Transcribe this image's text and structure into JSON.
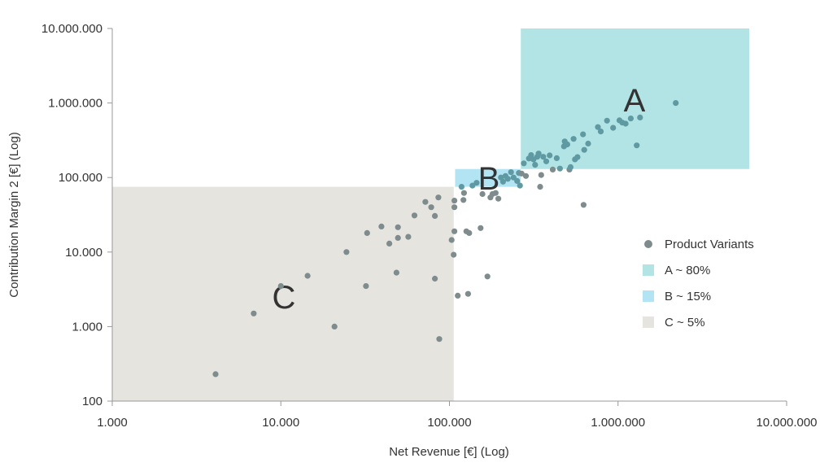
{
  "chart_data": {
    "type": "scatter",
    "x_scale": "log",
    "y_scale": "log",
    "xlabel": "Net Revenue [€] (Log)",
    "ylabel": "Contribution Margin 2 [€] (Log)",
    "xlim": [
      1000,
      10000000
    ],
    "ylim": [
      100,
      10000000
    ],
    "x_ticks": [
      1000,
      10000,
      100000,
      1000000,
      10000000
    ],
    "x_tick_labels": [
      "1.000",
      "10.000",
      "100.000",
      "1.000.000",
      "10.000.000"
    ],
    "y_ticks": [
      100,
      1000,
      10000,
      100000,
      1000000,
      10000000
    ],
    "y_tick_labels": [
      "100",
      "1.000",
      "10.000",
      "100.000",
      "1.000.000",
      "10.000.000"
    ],
    "grid": false,
    "legend_position": "right",
    "zones": [
      {
        "label": "A",
        "legend": "A ~ 80%",
        "x_range": [
          265000,
          6000000
        ],
        "y_range": [
          130000,
          10000000
        ],
        "color": "#b2e4e5"
      },
      {
        "label": "B",
        "legend": "B ~ 15%",
        "x_range": [
          108000,
          265000
        ],
        "y_range": [
          75000,
          130000
        ],
        "color": "#b3e4f4"
      },
      {
        "label": "C",
        "legend": "C ~ 5%",
        "x_range": [
          1000,
          106000
        ],
        "y_range": [
          100,
          75000
        ],
        "color": "#e5e4df"
      }
    ],
    "series": [
      {
        "name": "Product Variants",
        "color": "#7f8c8d",
        "points": [
          [
            4100,
            230
          ],
          [
            6900,
            1500
          ],
          [
            10000,
            3500
          ],
          [
            14400,
            4800
          ],
          [
            20800,
            1000
          ],
          [
            24500,
            10000
          ],
          [
            32000,
            3500
          ],
          [
            32500,
            18000
          ],
          [
            39500,
            22000
          ],
          [
            44000,
            13000
          ],
          [
            48500,
            5300
          ],
          [
            49500,
            21500
          ],
          [
            49500,
            15500
          ],
          [
            57000,
            16000
          ],
          [
            62000,
            31000
          ],
          [
            72000,
            47000
          ],
          [
            78000,
            40000
          ],
          [
            82000,
            4400
          ],
          [
            82000,
            30500
          ],
          [
            86000,
            54000
          ],
          [
            87000,
            680
          ],
          [
            103000,
            14500
          ],
          [
            106000,
            9200
          ],
          [
            107000,
            19000
          ],
          [
            107000,
            40000
          ],
          [
            107000,
            49000
          ],
          [
            112000,
            2600
          ],
          [
            118000,
            75000
          ],
          [
            121000,
            50000
          ],
          [
            122000,
            62000
          ],
          [
            126000,
            19000
          ],
          [
            129000,
            2750
          ],
          [
            131000,
            18000
          ],
          [
            137000,
            78000
          ],
          [
            145000,
            85000
          ],
          [
            153000,
            21000
          ],
          [
            157000,
            60000
          ],
          [
            168000,
            4700
          ],
          [
            175000,
            54000
          ],
          [
            180000,
            60000
          ],
          [
            188000,
            62000
          ],
          [
            195000,
            52000
          ],
          [
            202000,
            100000
          ],
          [
            208000,
            88000
          ],
          [
            215000,
            105000
          ],
          [
            222000,
            96000
          ],
          [
            232000,
            118000
          ],
          [
            240000,
            100000
          ],
          [
            252000,
            90000
          ],
          [
            258000,
            115000
          ],
          [
            262000,
            78000
          ],
          [
            268000,
            113000
          ],
          [
            276000,
            155000
          ],
          [
            284000,
            105000
          ],
          [
            296000,
            180000
          ],
          [
            305000,
            200000
          ],
          [
            315000,
            175000
          ],
          [
            322000,
            148000
          ],
          [
            332000,
            190000
          ],
          [
            338000,
            210000
          ],
          [
            345000,
            75000
          ],
          [
            350000,
            108000
          ],
          [
            360000,
            190000
          ],
          [
            375000,
            165000
          ],
          [
            393000,
            198000
          ],
          [
            410000,
            128000
          ],
          [
            433000,
            182000
          ],
          [
            452000,
            132000
          ],
          [
            478000,
            262000
          ],
          [
            483000,
            305000
          ],
          [
            500000,
            278000
          ],
          [
            515000,
            128000
          ],
          [
            523000,
            138000
          ],
          [
            545000,
            330000
          ],
          [
            555000,
            175000
          ],
          [
            575000,
            188000
          ],
          [
            620000,
            380000
          ],
          [
            625000,
            43000
          ],
          [
            630000,
            235000
          ],
          [
            665000,
            285000
          ],
          [
            760000,
            475000
          ],
          [
            790000,
            415000
          ],
          [
            860000,
            580000
          ],
          [
            935000,
            465000
          ],
          [
            1020000,
            585000
          ],
          [
            1060000,
            545000
          ],
          [
            1110000,
            528000
          ],
          [
            1190000,
            620000
          ],
          [
            1290000,
            270000
          ],
          [
            1350000,
            640000
          ],
          [
            2200000,
            1000000
          ]
        ]
      }
    ]
  },
  "legend": {
    "series_label": "Product Variants",
    "a_label": "A ~ 80%",
    "b_label": "B ~ 15%",
    "c_label": "C ~ 5%"
  }
}
